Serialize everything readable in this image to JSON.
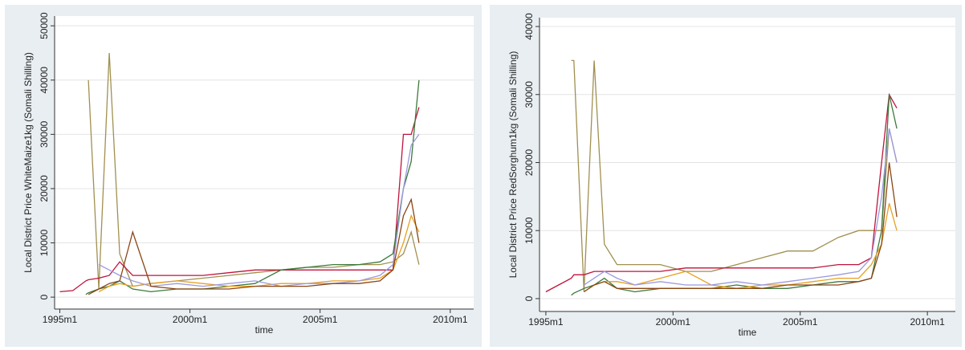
{
  "chart_data": [
    {
      "type": "line",
      "y_label": "Local District Price WhiteMaize1kg (Somali Shilling)",
      "x_label": "time",
      "xlim": [
        1994.8,
        2010.9
      ],
      "ylim": [
        -2200,
        51800
      ],
      "xticks": [
        {
          "value": 1995,
          "label": "1995m1"
        },
        {
          "value": 2000,
          "label": "2000m1"
        },
        {
          "value": 2005,
          "label": "2005m1"
        },
        {
          "value": 2010,
          "label": "2010m1"
        }
      ],
      "yticks": [
        0,
        10000,
        20000,
        30000,
        40000,
        50000
      ],
      "grid": true,
      "x": [
        1995.0,
        1995.5,
        1996.0,
        1996.1,
        1996.5,
        1996.9,
        1997.3,
        1997.8,
        1998.5,
        1999.5,
        2000.5,
        2001.5,
        2002.5,
        2003.5,
        2004.5,
        2005.5,
        2006.5,
        2007.3,
        2007.8,
        2008.2,
        2008.5,
        2008.8
      ],
      "series": [
        {
          "color": "#a09050",
          "values": [
            null,
            null,
            null,
            40000,
            1500,
            45000,
            8000,
            2000,
            2500,
            3000,
            3500,
            4000,
            4500,
            5000,
            5500,
            5500,
            6000,
            6000,
            6500,
            8000,
            12000,
            6000
          ]
        },
        {
          "color": "#c0143c",
          "values": [
            1000,
            1200,
            3000,
            3200,
            3500,
            4000,
            6500,
            4000,
            4000,
            4000,
            4000,
            4500,
            5000,
            5000,
            5000,
            5000,
            5000,
            5000,
            5000,
            30000,
            30000,
            35000
          ]
        },
        {
          "color": "#3c7a3c",
          "values": [
            null,
            null,
            500,
            800,
            1500,
            2000,
            3000,
            1500,
            1000,
            1500,
            1500,
            2000,
            2500,
            5000,
            5500,
            6000,
            6000,
            6500,
            8000,
            20000,
            25000,
            40000
          ]
        },
        {
          "color": "#e8a020",
          "values": [
            null,
            null,
            null,
            null,
            1000,
            2000,
            2500,
            2000,
            2500,
            3000,
            2500,
            2000,
            2000,
            2500,
            2500,
            3000,
            3000,
            3500,
            5000,
            10000,
            15000,
            12000
          ]
        },
        {
          "color": "#9a9ae0",
          "values": [
            null,
            null,
            null,
            null,
            6000,
            5000,
            4000,
            3000,
            2000,
            2500,
            2000,
            2500,
            3000,
            2000,
            2500,
            2500,
            3000,
            4000,
            6000,
            20000,
            28000,
            30000
          ]
        },
        {
          "color": "#8b4513",
          "values": [
            null,
            null,
            null,
            500,
            1500,
            2500,
            3000,
            12000,
            2000,
            1500,
            1500,
            1500,
            2000,
            2000,
            2000,
            2500,
            2500,
            3000,
            5000,
            15000,
            18000,
            10000
          ]
        }
      ]
    },
    {
      "type": "line",
      "y_label": "Local District Price RedSorghum1kg (Somali Shilling)",
      "x_label": "time",
      "xlim": [
        1994.75,
        2011.1
      ],
      "ylim": [
        -1890,
        41300
      ],
      "xticks": [
        {
          "value": 1995,
          "label": "1995m1"
        },
        {
          "value": 2000,
          "label": "2000m1"
        },
        {
          "value": 2005,
          "label": "2005m1"
        },
        {
          "value": 2010,
          "label": "2010m1"
        }
      ],
      "yticks": [
        0,
        10000,
        20000,
        30000,
        40000
      ],
      "grid": true,
      "x": [
        1995.0,
        1995.5,
        1996.0,
        1996.1,
        1996.5,
        1996.9,
        1997.3,
        1997.8,
        1998.5,
        1999.5,
        2000.5,
        2001.5,
        2002.5,
        2003.5,
        2004.5,
        2005.5,
        2006.5,
        2007.3,
        2007.8,
        2008.2,
        2008.5,
        2008.8
      ],
      "series": [
        {
          "color": "#a09050",
          "values": [
            null,
            null,
            35000,
            35000,
            1000,
            35000,
            8000,
            5000,
            5000,
            5000,
            4000,
            4000,
            5000,
            6000,
            7000,
            7000,
            9000,
            10000,
            10000,
            10000,
            25000,
            20000
          ]
        },
        {
          "color": "#c0143c",
          "values": [
            1000,
            2000,
            3000,
            3500,
            3500,
            4000,
            4000,
            4000,
            4000,
            4000,
            4500,
            4500,
            4500,
            4500,
            4500,
            4500,
            5000,
            5000,
            6000,
            20000,
            30000,
            28000
          ]
        },
        {
          "color": "#3c7a3c",
          "values": [
            null,
            null,
            500,
            800,
            1500,
            2000,
            3000,
            1500,
            1000,
            1500,
            1500,
            1500,
            2000,
            1500,
            1500,
            2000,
            2500,
            2500,
            3000,
            10000,
            30000,
            25000
          ]
        },
        {
          "color": "#e8a020",
          "values": [
            null,
            null,
            null,
            null,
            1000,
            2000,
            2500,
            2500,
            2000,
            3000,
            4000,
            2000,
            1500,
            2000,
            2000,
            2500,
            3000,
            3000,
            5000,
            8000,
            14000,
            10000
          ]
        },
        {
          "color": "#9a9ae0",
          "values": [
            null,
            null,
            null,
            null,
            2000,
            3000,
            4000,
            3000,
            2000,
            2500,
            2000,
            2000,
            2500,
            2000,
            2500,
            3000,
            3500,
            4000,
            6000,
            15000,
            25000,
            20000
          ]
        },
        {
          "color": "#8b4513",
          "values": [
            null,
            null,
            null,
            null,
            1000,
            2000,
            2500,
            1500,
            1500,
            1500,
            1500,
            1500,
            1500,
            1500,
            2000,
            2000,
            2000,
            2500,
            3000,
            8000,
            20000,
            12000
          ]
        }
      ]
    }
  ]
}
